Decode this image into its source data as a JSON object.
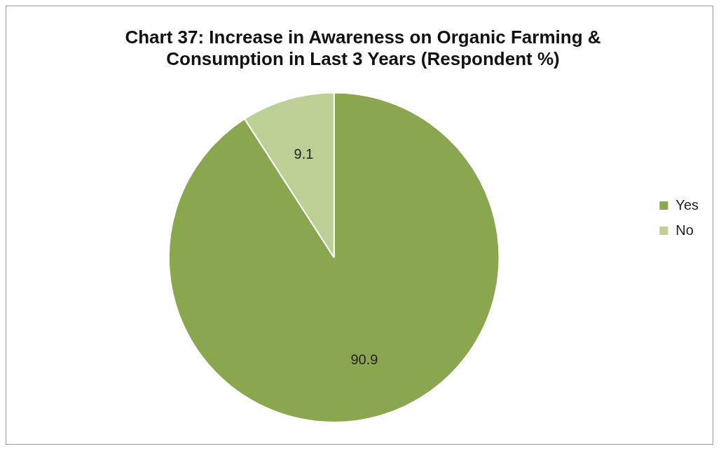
{
  "chart_data": {
    "type": "pie",
    "title": "Chart 37: Increase in Awareness on Organic Farming & Consumption in Last 3 Years (Respondent %)",
    "categories": [
      "Yes",
      "No"
    ],
    "values": [
      90.9,
      9.1
    ],
    "colors": [
      "#8aa64e",
      "#bccf95"
    ],
    "data_labels": true,
    "legend": "right"
  }
}
